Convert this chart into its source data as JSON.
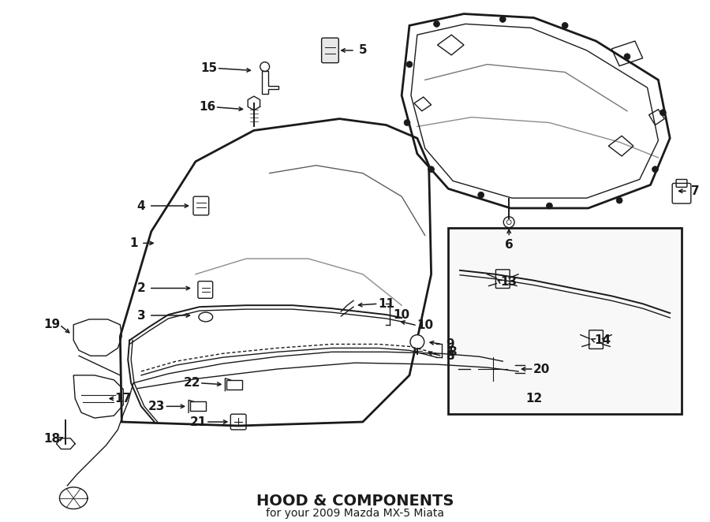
{
  "title": "HOOD & COMPONENTS",
  "subtitle": "for your 2009 Mazda MX-5 Miata",
  "bg_color": "#ffffff",
  "line_color": "#1a1a1a",
  "figsize": [
    9.0,
    6.62
  ],
  "dpi": 100
}
